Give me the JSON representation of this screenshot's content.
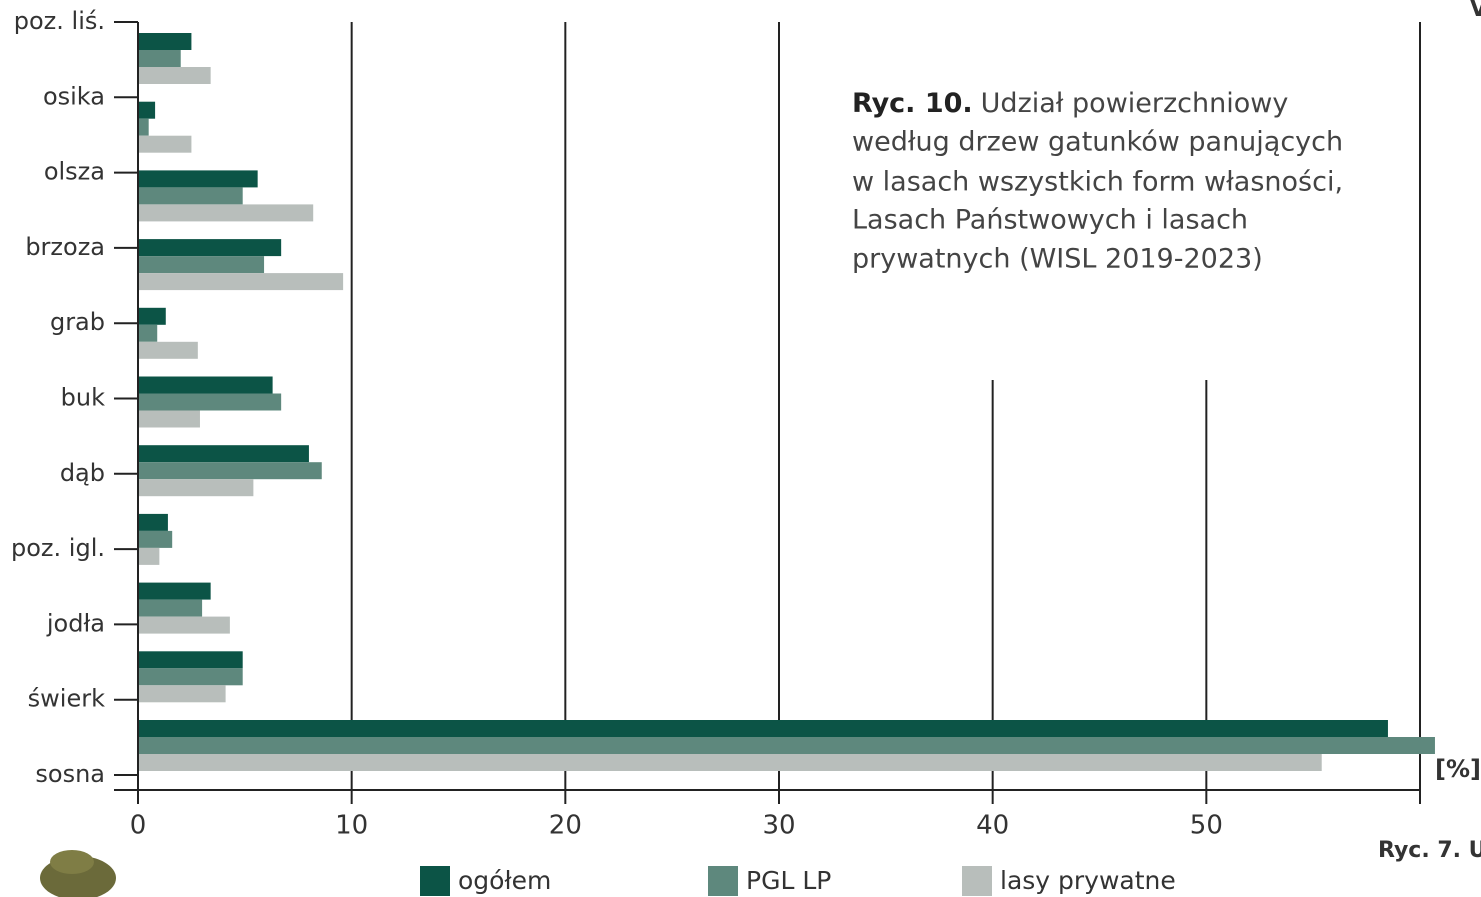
{
  "chart_data": {
    "type": "bar",
    "orientation": "horizontal",
    "title_label": "Ryc. 10.",
    "title_lines": [
      "Udział powierzchniowy",
      "według drzew gatunków panujących",
      "w lasach wszystkich form własności,",
      "Lasach Państwowych i lasach",
      "prywatnych (WISL 2019-2023)"
    ],
    "unit_label": "[%]",
    "fragment_text": "Ryc. 7. U",
    "corner_text": "V",
    "categories": [
      "poz. liś.",
      "osika",
      "olsza",
      "brzoza",
      "grab",
      "buk",
      "dąb",
      "poz. igl.",
      "jodła",
      "świerk",
      "sosna"
    ],
    "series": [
      {
        "name": "ogółem",
        "color": "#0c5446",
        "values": [
          2.5,
          0.8,
          5.6,
          6.7,
          1.3,
          6.3,
          8.0,
          1.4,
          3.4,
          4.9,
          58.5
        ]
      },
      {
        "name": "PGL LP",
        "color": "#5e887d",
        "values": [
          2.0,
          0.5,
          4.9,
          5.9,
          0.9,
          6.7,
          8.6,
          1.6,
          3.0,
          4.9,
          60.7
        ]
      },
      {
        "name": "lasy prywatne",
        "color": "#b8bebb",
        "values": [
          3.4,
          2.5,
          8.2,
          9.6,
          2.8,
          2.9,
          5.4,
          1.0,
          4.3,
          4.1,
          55.4
        ]
      }
    ],
    "xlim": [
      0,
      60
    ],
    "xticks": [
      0,
      10,
      20,
      30,
      40,
      50
    ],
    "grid": true
  }
}
